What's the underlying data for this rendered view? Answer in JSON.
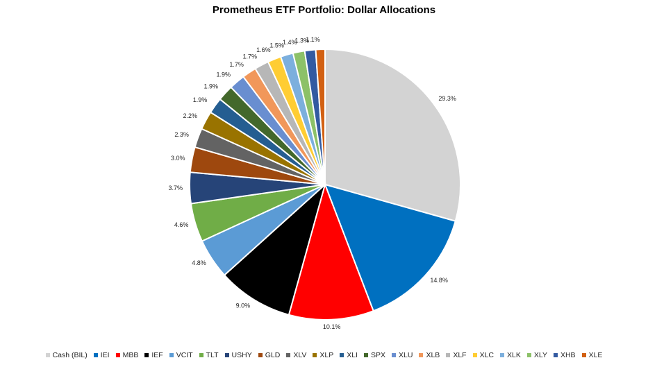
{
  "chart_data": {
    "type": "pie",
    "title": "Prometheus ETF Portfolio: Dollar Allocations",
    "categories": [
      "Cash (BIL)",
      "IEI",
      "MBB",
      "IEF",
      "VCIT",
      "TLT",
      "USHY",
      "GLD",
      "XLV",
      "XLP",
      "XLI",
      "SPX",
      "XLU",
      "XLB",
      "XLF",
      "XLC",
      "XLK",
      "XLY",
      "XHB",
      "XLE"
    ],
    "values": [
      29.3,
      14.8,
      10.1,
      9.0,
      4.8,
      4.6,
      3.7,
      3.0,
      2.3,
      2.2,
      1.9,
      1.9,
      1.9,
      1.7,
      1.7,
      1.6,
      1.5,
      1.4,
      1.3,
      1.1
    ],
    "data_labels": [
      "29.3%",
      "14.8%",
      "10.1%",
      "9.0%",
      "4.8%",
      "4.6%",
      "3.7%",
      "3.0%",
      "2.3%",
      "2.2%",
      "1.9%",
      "1.9%",
      "1.9%",
      "1.7%",
      "1.7%",
      "1.6%",
      "1.5%",
      "1.4%",
      "1.3%",
      "1.1%"
    ],
    "colors": [
      "#d3d3d3",
      "#0070c0",
      "#ff0000",
      "#000000",
      "#5b9bd5",
      "#70ad47",
      "#264478",
      "#9e480e",
      "#636363",
      "#997300",
      "#255e91",
      "#43682b",
      "#698ed0",
      "#f1975a",
      "#b7b7b7",
      "#ffcd33",
      "#7cafdd",
      "#8cc168",
      "#335aa1",
      "#d26012"
    ],
    "legend_position": "bottom",
    "start_angle": "12 o'clock",
    "direction": "clockwise"
  }
}
